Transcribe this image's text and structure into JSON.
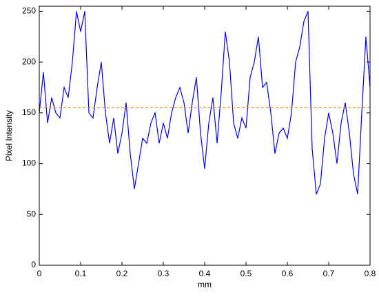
{
  "chart_data": {
    "type": "line",
    "xlabel": "mm",
    "ylabel": "Pixel Intensity",
    "xlim": [
      0,
      0.8
    ],
    "ylim": [
      0,
      255
    ],
    "xticks": [
      0,
      0.1,
      0.2,
      0.3,
      0.4,
      0.5,
      0.6,
      0.7,
      0.8
    ],
    "yticks": [
      0,
      50,
      100,
      150,
      200,
      250
    ],
    "grid": false,
    "series": [
      {
        "color": "#0000ff",
        "dash": false,
        "x": [
          0,
          0.01,
          0.02,
          0.03,
          0.04,
          0.05,
          0.06,
          0.07,
          0.08,
          0.09,
          0.1,
          0.11,
          0.12,
          0.13,
          0.14,
          0.15,
          0.16,
          0.17,
          0.18,
          0.19,
          0.2,
          0.21,
          0.22,
          0.23,
          0.24,
          0.25,
          0.26,
          0.27,
          0.28,
          0.29,
          0.3,
          0.31,
          0.32,
          0.33,
          0.34,
          0.35,
          0.36,
          0.37,
          0.38,
          0.39,
          0.4,
          0.41,
          0.42,
          0.43,
          0.44,
          0.45,
          0.46,
          0.47,
          0.48,
          0.49,
          0.5,
          0.51,
          0.52,
          0.53,
          0.54,
          0.55,
          0.56,
          0.57,
          0.58,
          0.59,
          0.6,
          0.61,
          0.62,
          0.63,
          0.64,
          0.65,
          0.66,
          0.67,
          0.68,
          0.69,
          0.7,
          0.71,
          0.72,
          0.73,
          0.74,
          0.75,
          0.76,
          0.77,
          0.78,
          0.79,
          0.8
        ],
        "values": [
          150,
          190,
          140,
          165,
          150,
          145,
          175,
          165,
          200,
          250,
          230,
          250,
          150,
          145,
          175,
          200,
          150,
          120,
          145,
          110,
          130,
          160,
          110,
          75,
          100,
          125,
          120,
          140,
          150,
          120,
          140,
          125,
          150,
          165,
          175,
          160,
          130,
          160,
          185,
          130,
          95,
          140,
          165,
          120,
          170,
          230,
          200,
          140,
          125,
          145,
          135,
          185,
          200,
          225,
          175,
          180,
          150,
          110,
          130,
          135,
          125,
          150,
          200,
          215,
          240,
          250,
          115,
          70,
          80,
          125,
          150,
          130,
          100,
          140,
          160,
          130,
          90,
          70,
          150,
          225,
          175
        ]
      },
      {
        "color": "#e8891a",
        "dash": true,
        "x": [
          0,
          0.8
        ],
        "values": [
          155,
          155
        ]
      }
    ]
  }
}
